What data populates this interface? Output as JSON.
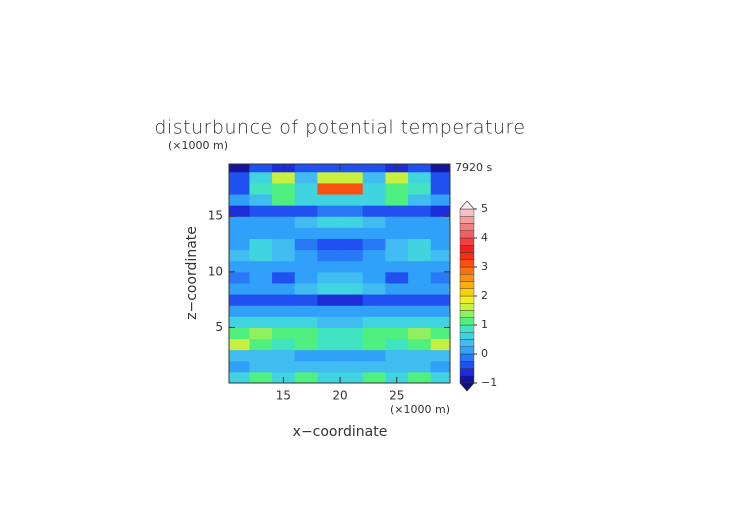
{
  "chart_data": {
    "type": "contour",
    "title": "disturbunce of potential temperature",
    "time_label": "7920 s",
    "x_label": "x−coordinate",
    "y_label": "z−coordinate",
    "x_unit": "(×1000 m)",
    "y_unit": "(×1000 m)",
    "xlim": [
      10.2,
      29.7
    ],
    "ylim": [
      0,
      19.7
    ],
    "xticks": [
      15,
      20,
      25
    ],
    "yticks": [
      5,
      10,
      15
    ],
    "x": [
      11,
      13,
      15,
      17,
      19,
      21,
      23,
      25,
      27,
      29
    ],
    "y": [
      0.5,
      1.5,
      2.5,
      3.5,
      4.5,
      5.5,
      6.5,
      7.5,
      8.5,
      9.5,
      10.5,
      11.5,
      12.5,
      13.5,
      14.5,
      15.5,
      16.5,
      17.5,
      18.5,
      19.5
    ],
    "z": [
      [
        0.6,
        1.0,
        0.6,
        1.0,
        0.6,
        0.6,
        1.0,
        0.6,
        1.0,
        0.6
      ],
      [
        0.2,
        0.3,
        0.3,
        0.4,
        0.4,
        0.4,
        0.4,
        0.3,
        0.3,
        0.2
      ],
      [
        0.3,
        0.3,
        0.3,
        0.2,
        0.2,
        0.2,
        0.2,
        0.3,
        0.3,
        0.3
      ],
      [
        1.5,
        1.1,
        0.8,
        1.1,
        0.9,
        0.9,
        1.1,
        0.8,
        1.1,
        1.5
      ],
      [
        1.0,
        1.3,
        1.2,
        1.0,
        0.8,
        0.8,
        1.0,
        1.2,
        1.3,
        1.0
      ],
      [
        0.5,
        0.6,
        0.7,
        0.5,
        0.4,
        0.4,
        0.5,
        0.7,
        0.6,
        0.5
      ],
      [
        0.2,
        0.1,
        0.1,
        0.2,
        0.0,
        0.0,
        0.2,
        0.1,
        0.1,
        0.2
      ],
      [
        -0.5,
        -0.5,
        -0.4,
        -0.5,
        -0.7,
        -0.7,
        -0.5,
        -0.4,
        -0.5,
        -0.5
      ],
      [
        0.0,
        0.2,
        0.0,
        0.3,
        0.5,
        0.5,
        0.3,
        0.0,
        0.2,
        0.0
      ],
      [
        -0.1,
        0.0,
        -0.5,
        0.1,
        0.3,
        0.3,
        0.1,
        -0.5,
        0.0,
        -0.1
      ],
      [
        0.1,
        0.2,
        0.1,
        0.0,
        0.1,
        0.1,
        0.0,
        0.1,
        0.2,
        0.1
      ],
      [
        0.3,
        0.7,
        0.3,
        0.0,
        -0.2,
        -0.2,
        0.0,
        0.3,
        0.7,
        0.3
      ],
      [
        0.2,
        0.6,
        0.3,
        -0.1,
        -0.4,
        -0.4,
        -0.1,
        0.3,
        0.6,
        0.2
      ],
      [
        0.0,
        0.1,
        0.1,
        0.1,
        0.2,
        0.2,
        0.1,
        0.1,
        0.1,
        0.0
      ],
      [
        0.1,
        0.2,
        0.2,
        0.3,
        0.6,
        0.6,
        0.3,
        0.2,
        0.2,
        0.1
      ],
      [
        -0.6,
        -0.5,
        -0.4,
        -0.3,
        -0.2,
        -0.2,
        -0.3,
        -0.4,
        -0.5,
        -0.6
      ],
      [
        0.0,
        0.3,
        1.0,
        0.6,
        0.5,
        0.5,
        0.6,
        1.0,
        0.3,
        0.0
      ],
      [
        -0.3,
        0.8,
        1.2,
        0.5,
        3.0,
        3.0,
        0.5,
        1.2,
        0.8,
        -0.3
      ],
      [
        -0.5,
        0.5,
        1.5,
        0.3,
        1.5,
        1.5,
        0.3,
        1.5,
        0.5,
        -0.5
      ],
      [
        -0.8,
        -0.5,
        -0.7,
        -0.5,
        -0.3,
        -0.3,
        -0.5,
        -0.7,
        -0.5,
        -0.8
      ]
    ],
    "levels": [
      -1,
      -0.75,
      -0.5,
      -0.25,
      0,
      0.25,
      0.5,
      0.75,
      1,
      1.25,
      1.5,
      1.75,
      2,
      2.25,
      2.5,
      2.75,
      3,
      3.25,
      3.5,
      3.75,
      4,
      4.25,
      4.5,
      4.75,
      5
    ],
    "colors": [
      "#14149c",
      "#1c2cd8",
      "#2050f0",
      "#2878f8",
      "#30a0f8",
      "#40bcf0",
      "#40d4e0",
      "#40e4c0",
      "#50f080",
      "#90f060",
      "#c8f040",
      "#f0f020",
      "#f8d010",
      "#f8b010",
      "#f89010",
      "#f87010",
      "#f85010",
      "#f03010",
      "#f02020",
      "#f04040",
      "#f06060",
      "#f08080",
      "#f0a0a0",
      "#f8c0c0"
    ],
    "under_color": "#0c0c80",
    "over_color": "#fbeef0",
    "cbar_ticks": [
      {
        "value": -1,
        "label": "−1"
      },
      0,
      1,
      2,
      3,
      4,
      5
    ]
  }
}
